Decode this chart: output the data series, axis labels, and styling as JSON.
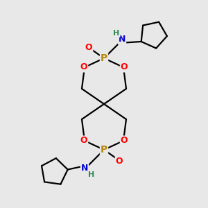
{
  "bg_color": "#e8e8e8",
  "atom_colors": {
    "P": "#b8860b",
    "O": "#ff0000",
    "N": "#0000cc",
    "H": "#2e8b57",
    "C": "#000000"
  },
  "bond_color": "#000000",
  "bond_width": 1.6,
  "figsize": [
    3.0,
    3.0
  ],
  "dpi": 100
}
